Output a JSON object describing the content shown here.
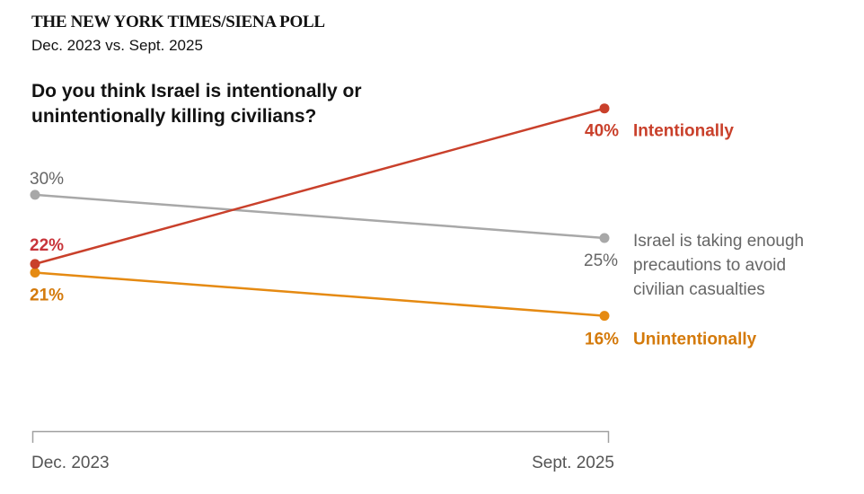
{
  "header": {
    "kicker": "THE NEW YORK TIMES/SIENA POLL",
    "subkicker": "Dec. 2023 vs. Sept. 2025",
    "question": "Do you think Israel is intentionally or unintentionally killing civilians?"
  },
  "chart_data": {
    "type": "line",
    "title": "Do you think Israel is intentionally or unintentionally killing civilians?",
    "x": [
      "Dec. 2023",
      "Sept. 2025"
    ],
    "xlabel": "",
    "ylabel": "",
    "ylim": [
      0,
      45
    ],
    "grid": false,
    "series": [
      {
        "name": "Intentionally",
        "values": [
          22,
          40
        ],
        "color": "#c9402b",
        "label_color": "#c9402b",
        "start_label_color": "#c8343a",
        "bold": true,
        "start_label": "22%",
        "end_label": "40%",
        "end_text": "Intentionally"
      },
      {
        "name": "Israel is taking enough precautions to avoid civilian casualties",
        "values": [
          30,
          25
        ],
        "color": "#a8a8a8",
        "label_color": "#666666",
        "start_label_color": "#666666",
        "bold": false,
        "start_label": "30%",
        "end_label": "25%",
        "end_text_lines": [
          "Israel is taking enough",
          "precautions to avoid",
          "civilian casualties"
        ]
      },
      {
        "name": "Unintentionally",
        "values": [
          21,
          16
        ],
        "color": "#e58a12",
        "label_color": "#d47a0b",
        "start_label_color": "#d47a0b",
        "bold": true,
        "start_label": "21%",
        "end_label": "16%",
        "end_text": "Unintentionally"
      }
    ]
  }
}
